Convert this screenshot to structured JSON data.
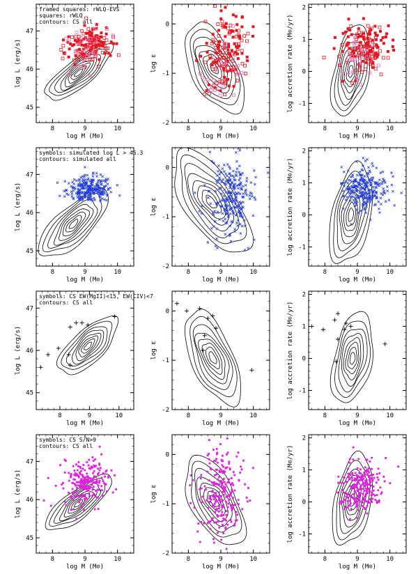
{
  "figure": {
    "description_rows": 4,
    "description_cols": 3
  },
  "colors": {
    "axes": "#000000",
    "contour": "#000000",
    "red": "#e8141e",
    "pink": "#f06fb3",
    "blue": "#1f3be0",
    "magenta": "#e020e0",
    "cross": "#000000"
  },
  "chart_data": [
    {
      "type": "scatter",
      "row": 0,
      "col": 0,
      "xlabel": "log M (M⊙)",
      "ylabel": "log L (erg/s)",
      "xlim": [
        7.5,
        10.5
      ],
      "ylim": [
        44.6,
        47.7
      ],
      "xticks": [
        8,
        9,
        10
      ],
      "yticks": [
        45,
        46,
        47
      ],
      "legend": [
        "framed squares: rWLQ-EVS",
        "squares: rWLQ",
        "contours: CS all"
      ],
      "contour_center": [
        8.8,
        45.9
      ],
      "contour_scale": [
        0.55,
        0.32
      ],
      "contour_angle": 35,
      "series": [
        {
          "name": "rWLQ-EVS",
          "marker": "open-square",
          "color": "red",
          "n": 70,
          "center": [
            9.1,
            46.6
          ],
          "spread": [
            0.35,
            0.25
          ],
          "seed": 11
        },
        {
          "name": "rWLQ",
          "marker": "filled-square",
          "color": "red",
          "n": 80,
          "center": [
            9.2,
            46.7
          ],
          "spread": [
            0.35,
            0.22
          ],
          "seed": 12
        },
        {
          "name": "pink",
          "marker": "open-square",
          "color": "pink",
          "n": 30,
          "center": [
            9.0,
            46.5
          ],
          "spread": [
            0.3,
            0.25
          ],
          "seed": 13
        }
      ]
    },
    {
      "type": "scatter",
      "row": 0,
      "col": 1,
      "xlabel": "log M (M⊙)",
      "ylabel": "log ε",
      "xlim": [
        7.5,
        10.5
      ],
      "ylim": [
        -2.0,
        0.4
      ],
      "xticks": [
        8,
        9,
        10
      ],
      "yticks": [
        -2,
        -1,
        0
      ],
      "legend": [],
      "contour_center": [
        8.8,
        -0.9
      ],
      "contour_scale": [
        0.6,
        0.45
      ],
      "contour_angle": -50,
      "series": [
        {
          "name": "rWLQ-EVS",
          "marker": "open-square",
          "color": "red",
          "n": 70,
          "center": [
            9.15,
            -0.6
          ],
          "spread": [
            0.35,
            0.4
          ],
          "seed": 21
        },
        {
          "name": "rWLQ",
          "marker": "filled-square",
          "color": "red",
          "n": 80,
          "center": [
            9.2,
            -0.5
          ],
          "spread": [
            0.35,
            0.35
          ],
          "seed": 22
        },
        {
          "name": "pink",
          "marker": "open-square",
          "color": "pink",
          "n": 30,
          "center": [
            9.1,
            -0.9
          ],
          "spread": [
            0.3,
            0.4
          ],
          "seed": 23
        }
      ]
    },
    {
      "type": "scatter",
      "row": 0,
      "col": 2,
      "xlabel": "log M (M⊙)",
      "ylabel": "log accretion rate (M⊙/yr)",
      "xlim": [
        7.5,
        10.5
      ],
      "ylim": [
        -1.6,
        2.1
      ],
      "xticks": [
        8,
        9,
        10
      ],
      "yticks": [
        -1,
        0,
        1,
        2
      ],
      "legend": [],
      "contour_center": [
        8.8,
        0.0
      ],
      "contour_scale": [
        0.55,
        0.55
      ],
      "contour_angle": 80,
      "series": [
        {
          "name": "rWLQ-EVS",
          "marker": "open-square",
          "color": "red",
          "n": 70,
          "center": [
            9.2,
            0.6
          ],
          "spread": [
            0.35,
            0.4
          ],
          "seed": 31
        },
        {
          "name": "rWLQ",
          "marker": "filled-square",
          "color": "red",
          "n": 80,
          "center": [
            9.3,
            0.8
          ],
          "spread": [
            0.35,
            0.35
          ],
          "seed": 32
        },
        {
          "name": "pink",
          "marker": "open-square",
          "color": "pink",
          "n": 30,
          "center": [
            9.0,
            0.3
          ],
          "spread": [
            0.3,
            0.4
          ],
          "seed": 33
        }
      ]
    },
    {
      "type": "scatter",
      "row": 1,
      "col": 0,
      "xlabel": "log M (M⊙)",
      "ylabel": "log L (erg/s)",
      "xlim": [
        7.5,
        10.5
      ],
      "ylim": [
        44.6,
        47.7
      ],
      "xticks": [
        8,
        9,
        10
      ],
      "yticks": [
        45,
        46,
        47
      ],
      "legend": [
        "symbols: simulated log L > 46.3",
        "contours: simulated all"
      ],
      "contour_center": [
        8.65,
        45.7
      ],
      "contour_scale": [
        0.6,
        0.42
      ],
      "contour_angle": 40,
      "series": [
        {
          "name": "simulated log L > 46.3",
          "marker": "x",
          "color": "blue",
          "n": 260,
          "center": [
            9.15,
            46.6
          ],
          "spread": [
            0.35,
            0.18
          ],
          "seed": 41,
          "ymin": 46.3
        }
      ]
    },
    {
      "type": "scatter",
      "row": 1,
      "col": 1,
      "xlabel": "log M (M⊙)",
      "ylabel": "log ε",
      "xlim": [
        7.5,
        10.5
      ],
      "ylim": [
        -2.0,
        0.4
      ],
      "xticks": [
        8,
        9,
        10
      ],
      "yticks": [
        -2,
        -1,
        0
      ],
      "legend": [],
      "contour_center": [
        8.7,
        -0.7
      ],
      "contour_scale": [
        0.75,
        0.5
      ],
      "contour_angle": -45,
      "series": [
        {
          "name": "simulated",
          "marker": "x",
          "color": "blue",
          "n": 260,
          "center": [
            9.3,
            -0.6
          ],
          "spread": [
            0.35,
            0.4
          ],
          "seed": 42
        }
      ]
    },
    {
      "type": "scatter",
      "row": 1,
      "col": 2,
      "xlabel": "log M (M⊙)",
      "ylabel": "log accretion rate (M⊙/yr)",
      "xlim": [
        7.5,
        10.5
      ],
      "ylim": [
        -1.6,
        2.1
      ],
      "xticks": [
        8,
        9,
        10
      ],
      "yticks": [
        -1,
        0,
        1,
        2
      ],
      "legend": [],
      "contour_center": [
        8.8,
        0.0
      ],
      "contour_scale": [
        0.6,
        0.62
      ],
      "contour_angle": 80,
      "series": [
        {
          "name": "simulated",
          "marker": "x",
          "color": "blue",
          "n": 260,
          "center": [
            9.2,
            0.8
          ],
          "spread": [
            0.35,
            0.35
          ],
          "seed": 43
        }
      ]
    },
    {
      "type": "scatter",
      "row": 2,
      "col": 0,
      "xlabel": "log M (M⊙)",
      "ylabel": "log L (erg/s)",
      "xlim": [
        7.2,
        10.5
      ],
      "ylim": [
        44.6,
        47.4
      ],
      "xticks": [
        8,
        9,
        10
      ],
      "yticks": [
        45,
        46,
        47
      ],
      "legend": [
        "symbols: CS EW(MgII)<15, EW(CIV)<7",
        "contours: CS all"
      ],
      "contour_center": [
        8.95,
        46.1
      ],
      "contour_scale": [
        0.55,
        0.35
      ],
      "contour_angle": 40,
      "series": [
        {
          "name": "CS weak-line",
          "marker": "plus",
          "color": "cross",
          "points": [
            [
              7.35,
              45.6
            ],
            [
              7.6,
              45.9
            ],
            [
              7.95,
              46.05
            ],
            [
              8.35,
              46.55
            ],
            [
              8.55,
              46.65
            ],
            [
              8.75,
              46.65
            ],
            [
              8.95,
              46.6
            ],
            [
              9.85,
              46.8
            ],
            [
              8.3,
              45.9
            ],
            [
              8.35,
              45.65
            ]
          ]
        }
      ]
    },
    {
      "type": "scatter",
      "row": 2,
      "col": 1,
      "xlabel": "log M (M⊙)",
      "ylabel": "log ε",
      "xlim": [
        7.5,
        10.5
      ],
      "ylim": [
        -2.0,
        0.4
      ],
      "xticks": [
        8,
        9,
        10
      ],
      "yticks": [
        -2,
        -1,
        0
      ],
      "legend": [],
      "contour_center": [
        8.75,
        -0.95
      ],
      "contour_scale": [
        0.62,
        0.42
      ],
      "contour_angle": -55,
      "series": [
        {
          "name": "CS weak-line",
          "marker": "plus",
          "color": "cross",
          "points": [
            [
              7.65,
              0.15
            ],
            [
              7.95,
              0.0
            ],
            [
              8.35,
              0.05
            ],
            [
              8.6,
              -0.15
            ],
            [
              8.75,
              -0.1
            ],
            [
              8.85,
              -0.35
            ],
            [
              8.5,
              -0.5
            ],
            [
              8.45,
              -0.8
            ],
            [
              9.95,
              -1.2
            ]
          ]
        }
      ]
    },
    {
      "type": "scatter",
      "row": 2,
      "col": 2,
      "xlabel": "log M (M⊙)",
      "ylabel": "log accretion rate (M⊙/yr)",
      "xlim": [
        7.5,
        10.5
      ],
      "ylim": [
        -1.6,
        2.1
      ],
      "xticks": [
        8,
        9,
        10
      ],
      "yticks": [
        -1,
        0,
        1,
        2
      ],
      "legend": [],
      "contour_center": [
        8.85,
        0.0
      ],
      "contour_scale": [
        0.55,
        0.6
      ],
      "contour_angle": 80,
      "series": [
        {
          "name": "CS weak-line",
          "marker": "plus",
          "color": "cross",
          "points": [
            [
              7.6,
              1.0
            ],
            [
              7.95,
              0.9
            ],
            [
              8.3,
              1.2
            ],
            [
              8.4,
              1.4
            ],
            [
              8.65,
              1.1
            ],
            [
              8.8,
              1.0
            ],
            [
              8.6,
              0.9
            ],
            [
              8.4,
              0.6
            ],
            [
              9.85,
              0.45
            ],
            [
              8.35,
              -0.1
            ]
          ]
        }
      ]
    },
    {
      "type": "scatter",
      "row": 3,
      "col": 0,
      "xlabel": "log M (M⊙)",
      "ylabel": "log L (erg/s)",
      "xlim": [
        7.5,
        10.5
      ],
      "ylim": [
        44.6,
        47.7
      ],
      "xticks": [
        8,
        9,
        10
      ],
      "yticks": [
        45,
        46,
        47
      ],
      "legend": [
        "symbols: CS S/N>9",
        "contours: CS all"
      ],
      "contour_center": [
        8.8,
        45.9
      ],
      "contour_scale": [
        0.55,
        0.32
      ],
      "contour_angle": 35,
      "series": [
        {
          "name": "CS S/N>9",
          "marker": "filled-square-small",
          "color": "magenta",
          "n": 230,
          "center": [
            9.0,
            46.45
          ],
          "spread": [
            0.35,
            0.3
          ],
          "seed": 51
        }
      ]
    },
    {
      "type": "scatter",
      "row": 3,
      "col": 1,
      "xlabel": "log M (M⊙)",
      "ylabel": "log ε",
      "xlim": [
        7.5,
        10.5
      ],
      "ylim": [
        -2.0,
        0.4
      ],
      "xticks": [
        8,
        9,
        10
      ],
      "yticks": [
        -2,
        -1,
        0
      ],
      "legend": [],
      "contour_center": [
        8.8,
        -0.95
      ],
      "contour_scale": [
        0.6,
        0.45
      ],
      "contour_angle": -50,
      "series": [
        {
          "name": "CS S/N>9",
          "marker": "filled-square-small",
          "color": "magenta",
          "n": 230,
          "center": [
            9.0,
            -0.75
          ],
          "spread": [
            0.35,
            0.45
          ],
          "seed": 52
        }
      ]
    },
    {
      "type": "scatter",
      "row": 3,
      "col": 2,
      "xlabel": "log M (M⊙)",
      "ylabel": "log accretion rate (M⊙/yr)",
      "xlim": [
        7.5,
        10.5
      ],
      "ylim": [
        -1.6,
        2.1
      ],
      "xticks": [
        8,
        9,
        10
      ],
      "yticks": [
        -1,
        0,
        1,
        2
      ],
      "legend": [],
      "contour_center": [
        8.85,
        0.05
      ],
      "contour_scale": [
        0.55,
        0.58
      ],
      "contour_angle": 80,
      "series": [
        {
          "name": "CS S/N>9",
          "marker": "filled-square-small",
          "color": "magenta",
          "n": 230,
          "center": [
            9.1,
            0.45
          ],
          "spread": [
            0.35,
            0.4
          ],
          "seed": 53
        }
      ]
    }
  ]
}
